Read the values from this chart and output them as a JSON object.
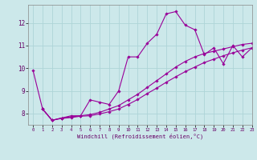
{
  "xlabel": "Windchill (Refroidissement éolien,°C)",
  "bg_color": "#cce8ea",
  "grid_color": "#aed4d8",
  "line_color": "#990099",
  "x_main": [
    0,
    1,
    2,
    3,
    4,
    5,
    6,
    7,
    8,
    9,
    10,
    11,
    12,
    13,
    14,
    15,
    16,
    17,
    18,
    19,
    20,
    21,
    22,
    23
  ],
  "y_main": [
    9.9,
    8.2,
    7.7,
    7.8,
    7.9,
    7.9,
    8.6,
    8.5,
    8.4,
    9.0,
    10.5,
    10.5,
    11.1,
    11.5,
    12.4,
    12.5,
    11.9,
    11.7,
    10.6,
    10.9,
    10.2,
    11.0,
    10.5,
    10.9
  ],
  "x_line2": [
    1,
    2,
    3,
    4,
    5,
    6,
    7,
    8,
    9,
    10,
    11,
    12,
    13,
    14,
    15,
    16,
    17,
    18,
    19,
    20,
    21,
    22,
    23
  ],
  "y_line2": [
    8.2,
    7.7,
    7.8,
    7.85,
    7.9,
    7.95,
    8.05,
    8.2,
    8.35,
    8.6,
    8.85,
    9.15,
    9.45,
    9.75,
    10.05,
    10.3,
    10.5,
    10.65,
    10.75,
    10.85,
    10.95,
    11.05,
    11.1
  ],
  "x_line3": [
    1,
    2,
    3,
    4,
    5,
    6,
    7,
    8,
    9,
    10,
    11,
    12,
    13,
    14,
    15,
    16,
    17,
    18,
    19,
    20,
    21,
    22,
    23
  ],
  "y_line3": [
    8.2,
    7.7,
    7.78,
    7.82,
    7.88,
    7.9,
    7.98,
    8.08,
    8.2,
    8.4,
    8.62,
    8.88,
    9.12,
    9.38,
    9.62,
    9.85,
    10.05,
    10.25,
    10.4,
    10.55,
    10.68,
    10.8,
    10.9
  ],
  "ylim": [
    7.5,
    12.8
  ],
  "xlim": [
    -0.5,
    23
  ],
  "yticks": [
    8,
    9,
    10,
    11,
    12
  ],
  "xticks": [
    0,
    1,
    2,
    3,
    4,
    5,
    6,
    7,
    8,
    9,
    10,
    11,
    12,
    13,
    14,
    15,
    16,
    17,
    18,
    19,
    20,
    21,
    22,
    23
  ],
  "marker": "D",
  "markersize": 1.8,
  "linewidth": 0.8
}
